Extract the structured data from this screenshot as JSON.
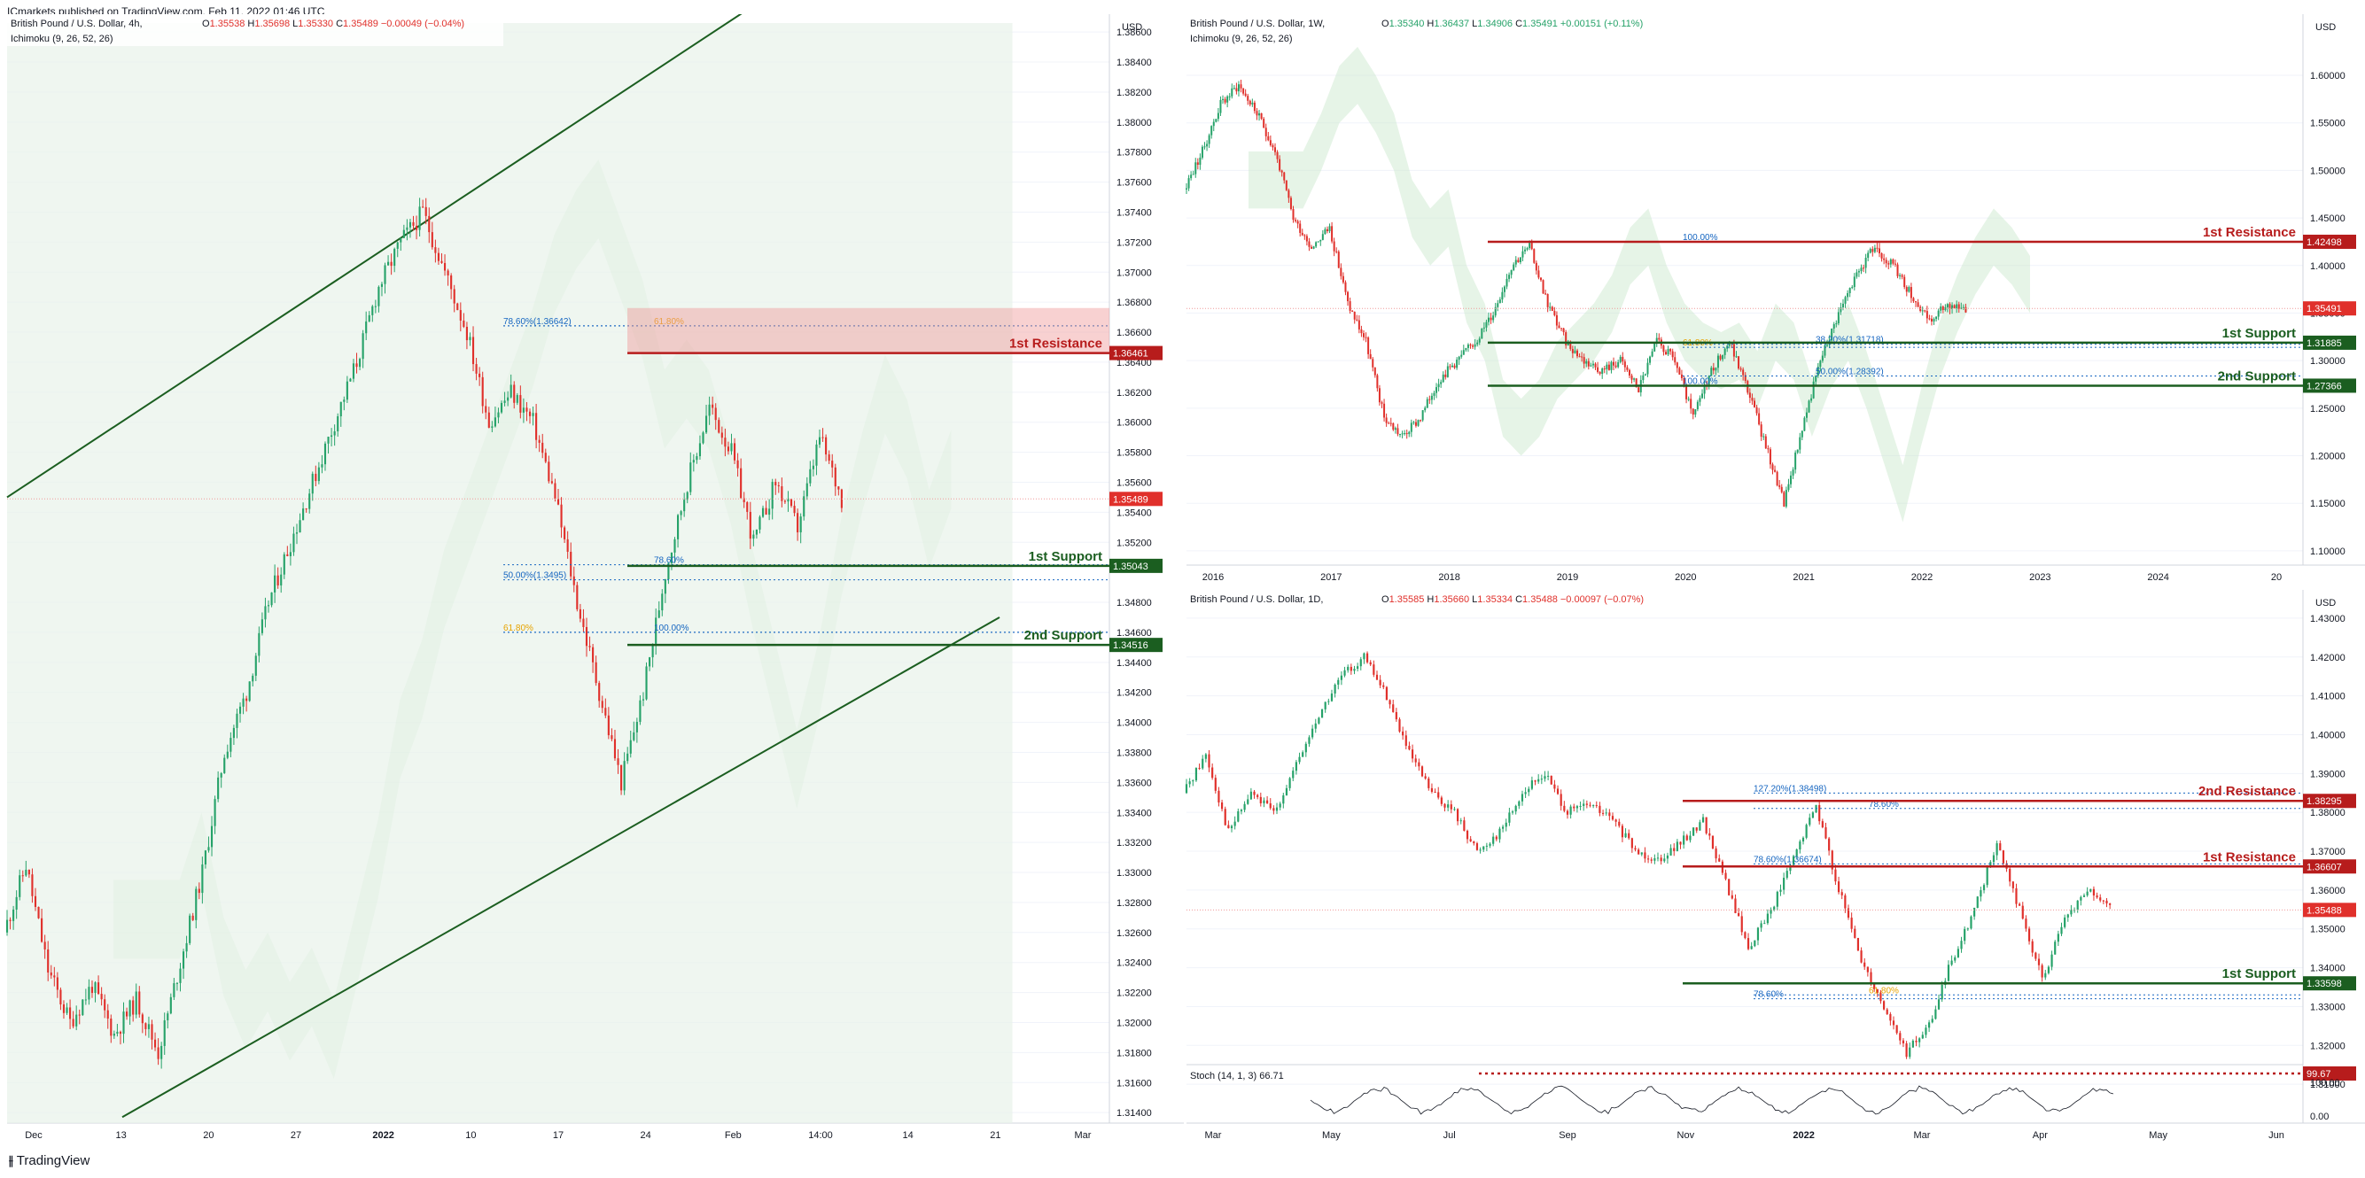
{
  "header": {
    "text": "ICmarkets published on TradingView.com, Feb 11, 2022 01:46 UTC"
  },
  "footer": {
    "logo": "tradingview-logo",
    "text": "TradingView"
  },
  "colors": {
    "up": "#26a269",
    "down": "#e0302b",
    "cloudGreen": "#c8e6c9",
    "cloudRed": "#f8d2d2",
    "resistance": "#b71c1c",
    "support": "#1b5e20",
    "blueDots": "#1565c0"
  },
  "chart_data": [
    {
      "id": "h4",
      "type": "candlestick",
      "symbol": "British Pound / U.S. Dollar, 4h,",
      "indicator": "Ichimoku (9, 26, 52, 26)",
      "ohlc": {
        "o_label": "O",
        "o": "1.35538",
        "h_label": "H",
        "h": "1.35698",
        "l_label": "L",
        "l": "1.35330",
        "c_label": "C",
        "c": "1.35489",
        "chg": "−0.00049 (−0.04%)"
      },
      "currency": "USD",
      "ylim": [
        1.3133,
        1.3866
      ],
      "yticks": [
        1.314,
        1.316,
        1.318,
        1.32,
        1.322,
        1.324,
        1.326,
        1.328,
        1.33,
        1.332,
        1.334,
        1.336,
        1.338,
        1.34,
        1.342,
        1.344,
        1.346,
        1.348,
        1.352,
        1.354,
        1.356,
        1.358,
        1.36,
        1.362,
        1.364,
        1.366,
        1.368,
        1.37,
        1.372,
        1.374,
        1.376,
        1.378,
        1.38,
        1.382,
        1.384,
        1.386
      ],
      "ytick_labels": [
        "1.31400",
        "1.31600",
        "1.31800",
        "1.32000",
        "1.32200",
        "1.32400",
        "1.32600",
        "1.32800",
        "1.33000",
        "1.33200",
        "1.33400",
        "1.33600",
        "1.33800",
        "1.34000",
        "1.34200",
        "1.34400",
        "1.34600",
        "1.34800",
        "1.35200",
        "1.35400",
        "1.35600",
        "1.35800",
        "1.36000",
        "1.36200",
        "1.36400",
        "1.36600",
        "1.36800",
        "1.37000",
        "1.37200",
        "1.37400",
        "1.37600",
        "1.37800",
        "1.38000",
        "1.38200",
        "1.38400",
        "1.38600"
      ],
      "xticks": [
        {
          "label": "Dec",
          "bold": false
        },
        {
          "label": "13",
          "bold": false
        },
        {
          "label": "20",
          "bold": false
        },
        {
          "label": "27",
          "bold": false
        },
        {
          "label": "2022",
          "bold": true
        },
        {
          "label": "10",
          "bold": false
        },
        {
          "label": "17",
          "bold": false
        },
        {
          "label": "24",
          "bold": false
        },
        {
          "label": "Feb",
          "bold": false
        },
        {
          "label": "14:00",
          "bold": false
        },
        {
          "label": "14",
          "bold": false
        },
        {
          "label": "21",
          "bold": false
        },
        {
          "label": "Mar",
          "bold": false
        }
      ],
      "price_path": [
        1.326,
        1.3305,
        1.3235,
        1.32,
        1.3225,
        1.3192,
        1.3215,
        1.318,
        1.324,
        1.33,
        1.338,
        1.342,
        1.348,
        1.352,
        1.356,
        1.36,
        1.364,
        1.369,
        1.372,
        1.374,
        1.37,
        1.366,
        1.36,
        1.362,
        1.36,
        1.355,
        1.348,
        1.342,
        1.336,
        1.342,
        1.35,
        1.356,
        1.361,
        1.358,
        1.352,
        1.356,
        1.353,
        1.359,
        1.3549
      ],
      "levels": [
        {
          "name": "1st Resistance",
          "price": 1.36461,
          "label": "1.36461",
          "kind": "resistance"
        },
        {
          "name": "1st Support",
          "price": 1.35043,
          "label": "1.35043",
          "kind": "support"
        },
        {
          "name": "2nd Support",
          "price": 1.34516,
          "label": "1.34516",
          "kind": "support"
        }
      ],
      "current": {
        "price": 1.35489,
        "label": "1.35489"
      },
      "annotations": [
        {
          "text": "78.60%(1.36642)",
          "price": 1.36642
        },
        {
          "text": "61.80%",
          "price": 1.36642
        },
        {
          "text": "50.00%(1.3495)",
          "price": 1.3495
        },
        {
          "text": "78.60%",
          "price": 1.3505
        },
        {
          "text": "61.80%",
          "price": 1.346
        },
        {
          "text": "100.00%",
          "price": 1.346
        }
      ]
    },
    {
      "id": "w1",
      "type": "candlestick",
      "symbol": "British Pound / U.S. Dollar, 1W,",
      "indicator": "Ichimoku (9, 26, 52, 26)",
      "ohlc": {
        "o_label": "O",
        "o": "1.35340",
        "h_label": "H",
        "h": "1.36437",
        "l_label": "L",
        "l": "1.34906",
        "c_label": "C",
        "c": "1.35491",
        "chg": "+0.00151 (+0.11%)"
      },
      "currency": "USD",
      "ylim": [
        1.085,
        1.655
      ],
      "yticks": [
        1.1,
        1.15,
        1.2,
        1.25,
        1.3,
        1.35,
        1.4,
        1.45,
        1.5,
        1.55,
        1.6
      ],
      "ytick_labels": [
        "1.10000",
        "1.15000",
        "1.20000",
        "1.25000",
        "1.30000",
        "1.35000",
        "1.40000",
        "1.45000",
        "1.50000",
        "1.55000",
        "1.60000"
      ],
      "xticks": [
        {
          "label": "2016",
          "bold": false
        },
        {
          "label": "2017",
          "bold": false
        },
        {
          "label": "2018",
          "bold": false
        },
        {
          "label": "2019",
          "bold": false
        },
        {
          "label": "2020",
          "bold": false
        },
        {
          "label": "2021",
          "bold": false
        },
        {
          "label": "2022",
          "bold": false
        },
        {
          "label": "2023",
          "bold": false
        },
        {
          "label": "2024",
          "bold": false
        },
        {
          "label": "20",
          "bold": false
        }
      ],
      "price_path": [
        1.48,
        1.52,
        1.57,
        1.59,
        1.56,
        1.52,
        1.45,
        1.42,
        1.44,
        1.36,
        1.32,
        1.24,
        1.22,
        1.24,
        1.28,
        1.3,
        1.32,
        1.35,
        1.4,
        1.42,
        1.36,
        1.32,
        1.3,
        1.29,
        1.3,
        1.27,
        1.32,
        1.3,
        1.24,
        1.29,
        1.32,
        1.27,
        1.21,
        1.15,
        1.23,
        1.3,
        1.35,
        1.39,
        1.42,
        1.4,
        1.37,
        1.34,
        1.36,
        1.355
      ],
      "levels": [
        {
          "name": "1st Resistance",
          "price": 1.42498,
          "label": "1.42498",
          "kind": "resistance"
        },
        {
          "name": "1st Support",
          "price": 1.31885,
          "label": "1.31885",
          "kind": "support"
        },
        {
          "name": "2nd Support",
          "price": 1.27366,
          "label": "1.27366",
          "kind": "support"
        }
      ],
      "current": {
        "price": 1.35491,
        "label": "1.35491"
      },
      "annotations": [
        {
          "text": "100.00%",
          "price": 1.4249
        },
        {
          "text": "38.20%(1.31718)",
          "price": 1.3172
        },
        {
          "text": "61.80%",
          "price": 1.314
        },
        {
          "text": "50.00%(1.28392)",
          "price": 1.2839
        },
        {
          "text": "100.00%",
          "price": 1.2737
        }
      ]
    },
    {
      "id": "d1",
      "type": "candlestick",
      "symbol": "British Pound / U.S. Dollar, 1D,",
      "ohlc": {
        "o_label": "O",
        "o": "1.35585",
        "h_label": "H",
        "h": "1.35660",
        "l_label": "L",
        "l": "1.35334",
        "c_label": "C",
        "c": "1.35488",
        "chg": "−0.00097 (−0.07%)"
      },
      "currency": "USD",
      "ylim": [
        1.3,
        1.435
      ],
      "yticks": [
        1.31,
        1.32,
        1.33,
        1.34,
        1.35,
        1.36,
        1.37,
        1.38,
        1.39,
        1.4,
        1.41,
        1.42,
        1.43
      ],
      "ytick_labels": [
        "1.31000",
        "1.32000",
        "1.33000",
        "1.34000",
        "1.35000",
        "1.36000",
        "1.37000",
        "1.38000",
        "1.39000",
        "1.40000",
        "1.41000",
        "1.42000",
        "1.43000"
      ],
      "xticks": [
        {
          "label": "Mar",
          "bold": false
        },
        {
          "label": "May",
          "bold": false
        },
        {
          "label": "Jul",
          "bold": false
        },
        {
          "label": "Sep",
          "bold": false
        },
        {
          "label": "Nov",
          "bold": false
        },
        {
          "label": "2022",
          "bold": true
        },
        {
          "label": "Mar",
          "bold": false
        },
        {
          "label": "Apr",
          "bold": false
        },
        {
          "label": "May",
          "bold": false
        },
        {
          "label": "Jun",
          "bold": false
        }
      ],
      "price_path": [
        1.385,
        1.395,
        1.375,
        1.385,
        1.38,
        1.392,
        1.405,
        1.415,
        1.42,
        1.41,
        1.395,
        1.385,
        1.38,
        1.37,
        1.375,
        1.385,
        1.39,
        1.38,
        1.382,
        1.378,
        1.37,
        1.368,
        1.372,
        1.378,
        1.362,
        1.345,
        1.355,
        1.368,
        1.382,
        1.36,
        1.342,
        1.33,
        1.318,
        1.325,
        1.342,
        1.355,
        1.372,
        1.355,
        1.337,
        1.352,
        1.36,
        1.355
      ],
      "levels": [
        {
          "name": "2nd Resistance",
          "price": 1.38295,
          "label": "1.38295",
          "kind": "resistance"
        },
        {
          "name": "1st Resistance",
          "price": 1.36607,
          "label": "1.36607",
          "kind": "resistance"
        },
        {
          "name": "1st Support",
          "price": 1.33598,
          "label": "1.33598",
          "kind": "support"
        }
      ],
      "current": {
        "price": 1.35488,
        "label": "1.35488"
      },
      "annotations": [
        {
          "text": "127.20%(1.38498)",
          "price": 1.38498
        },
        {
          "text": "78.60%",
          "price": 1.381
        },
        {
          "text": "78.60%(1.36674)",
          "price": 1.36674
        },
        {
          "text": "61.80%",
          "price": 1.333
        },
        {
          "text": "78.60%",
          "price": 1.332
        }
      ],
      "stoch": {
        "label": "Stoch (14, 1, 3)",
        "value": "66.71",
        "level": {
          "value": 99.67,
          "label": "99.67"
        },
        "yticks_labels": [
          "100.00",
          "0.00"
        ]
      }
    }
  ]
}
